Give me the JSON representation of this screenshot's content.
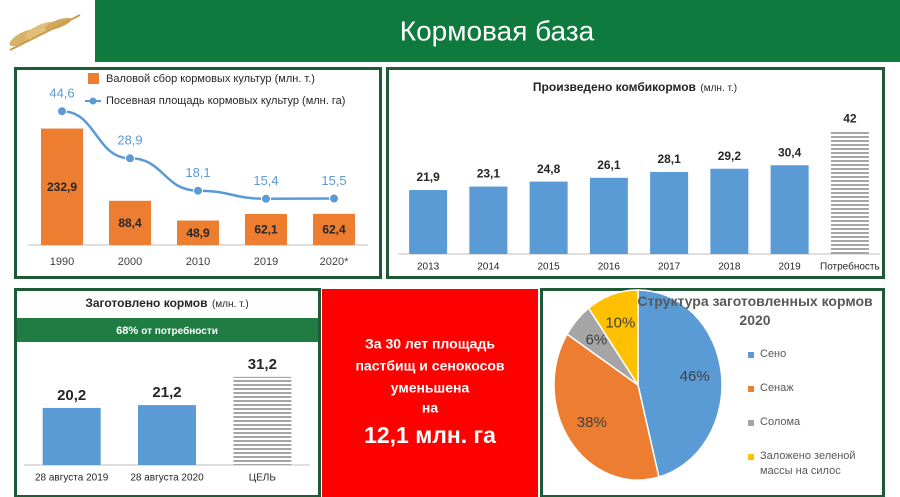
{
  "title": "Кормовая база",
  "chart_data": [
    {
      "type": "combo",
      "categories": [
        "1990",
        "2000",
        "2010",
        "2019",
        "2020*"
      ],
      "series": [
        {
          "name": "Валовой сбор кормовых культур (млн. т.)",
          "color": "#ed7d31",
          "kind": "bar",
          "values": [
            232.9,
            88.4,
            48.9,
            62.1,
            62.4
          ],
          "value_labels": [
            "232,9",
            "88,4",
            "48,9",
            "62,1",
            "62,4"
          ]
        },
        {
          "name": "Посевная площадь кормовых культур (млн. га)",
          "color": "#5b9bd5",
          "kind": "line",
          "axis": "y2",
          "values": [
            44.6,
            28.9,
            18.1,
            15.4,
            15.5
          ],
          "value_labels": [
            "44,6",
            "28,9",
            "18,1",
            "15,4",
            "15,5"
          ]
        }
      ],
      "ylim": [
        0,
        300
      ],
      "y2lim": [
        0,
        50
      ]
    },
    {
      "type": "bar",
      "title": "Произведено комбикормов",
      "unit": "(млн. т.)",
      "categories": [
        "2013",
        "2014",
        "2015",
        "2016",
        "2017",
        "2018",
        "2019",
        "Потребность"
      ],
      "values": [
        21.9,
        23.1,
        24.8,
        26.1,
        28.1,
        29.2,
        30.4,
        42
      ],
      "value_labels": [
        "21,9",
        "23,1",
        "24,8",
        "26,1",
        "28,1",
        "29,2",
        "30,4",
        "42"
      ],
      "color": "#5b9bd5",
      "bar_styles": [
        "solid",
        "solid",
        "solid",
        "solid",
        "solid",
        "solid",
        "solid",
        "hatched"
      ],
      "ylim": [
        0,
        50
      ]
    },
    {
      "type": "bar",
      "title": "Заготовлено кормов",
      "unit": "(млн. т.)",
      "badge": "68%",
      "badge_text": "от потребности",
      "categories": [
        "28 августа 2019",
        "28 августа 2020",
        "ЦЕЛЬ"
      ],
      "values": [
        20.2,
        21.2,
        31.2
      ],
      "value_labels": [
        "20,2",
        "21,2",
        "31,2"
      ],
      "color": "#5b9bd5",
      "bar_styles": [
        "solid",
        "solid",
        "hatched"
      ],
      "ylim": [
        0,
        40
      ]
    },
    {
      "type": "pie",
      "title": "Структура заготовленных кормов 2020",
      "categories": [
        "Сено",
        "Сенаж",
        "Солома",
        "Заложено зеленой массы на силос"
      ],
      "values": [
        46,
        38,
        6,
        10
      ],
      "value_labels": [
        "46%",
        "38%",
        "6%",
        "10%"
      ],
      "colors": [
        "#5b9bd5",
        "#ed7d31",
        "#a5a5a5",
        "#ffc000"
      ]
    }
  ],
  "callout": {
    "lines": [
      "За 30 лет площадь",
      "пастбищ и сенокосов",
      "уменьшена",
      "на"
    ],
    "highlight": "12,1 млн. га"
  }
}
